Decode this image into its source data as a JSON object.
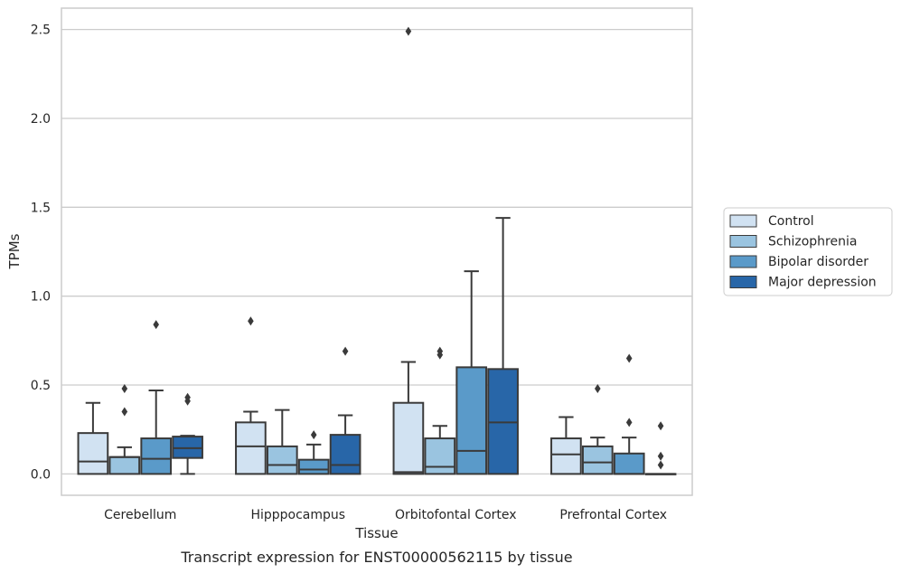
{
  "chart_data": {
    "type": "box",
    "title": "",
    "caption": "Transcript expression for ENST00000562115 by tissue",
    "xlabel": "Tissue",
    "ylabel": "TPMs",
    "ylim": [
      -0.12,
      2.62
    ],
    "yticks": [
      0.0,
      0.5,
      1.0,
      1.5,
      2.0,
      2.5
    ],
    "ytick_labels": [
      "0.0",
      "0.5",
      "1.0",
      "1.5",
      "2.0",
      "2.5"
    ],
    "grid": "horizontal",
    "legend_position": "right",
    "categories": [
      "Cerebellum",
      "Hipppocampus",
      "Orbitofontal Cortex",
      "Prefrontal Cortex"
    ],
    "series": [
      {
        "name": "Control",
        "color": "#d1e2f2",
        "boxes": [
          {
            "whisker_low": 0.0,
            "q1": 0.0,
            "median": 0.07,
            "q3": 0.23,
            "whisker_high": 0.4,
            "outliers": []
          },
          {
            "whisker_low": 0.0,
            "q1": 0.0,
            "median": 0.155,
            "q3": 0.29,
            "whisker_high": 0.35,
            "outliers": [
              0.86
            ]
          },
          {
            "whisker_low": 0.0,
            "q1": 0.0,
            "median": 0.01,
            "q3": 0.4,
            "whisker_high": 0.63,
            "outliers": [
              2.49
            ]
          },
          {
            "whisker_low": 0.0,
            "q1": 0.0,
            "median": 0.11,
            "q3": 0.2,
            "whisker_high": 0.32,
            "outliers": []
          }
        ]
      },
      {
        "name": "Schizophrenia",
        "color": "#9ac4e0",
        "boxes": [
          {
            "whisker_low": 0.0,
            "q1": 0.0,
            "median": 0.095,
            "q3": 0.095,
            "whisker_high": 0.15,
            "outliers": [
              0.35,
              0.48
            ]
          },
          {
            "whisker_low": 0.0,
            "q1": 0.0,
            "median": 0.05,
            "q3": 0.155,
            "whisker_high": 0.36,
            "outliers": []
          },
          {
            "whisker_low": 0.0,
            "q1": 0.0,
            "median": 0.04,
            "q3": 0.2,
            "whisker_high": 0.27,
            "outliers": [
              0.67,
              0.69
            ]
          },
          {
            "whisker_low": 0.0,
            "q1": 0.0,
            "median": 0.065,
            "q3": 0.155,
            "whisker_high": 0.205,
            "outliers": [
              0.48
            ]
          }
        ]
      },
      {
        "name": "Bipolar disorder",
        "color": "#5a9ac9",
        "boxes": [
          {
            "whisker_low": 0.0,
            "q1": 0.0,
            "median": 0.085,
            "q3": 0.2,
            "whisker_high": 0.47,
            "outliers": [
              0.84
            ]
          },
          {
            "whisker_low": 0.0,
            "q1": 0.0,
            "median": 0.025,
            "q3": 0.08,
            "whisker_high": 0.165,
            "outliers": [
              0.22
            ]
          },
          {
            "whisker_low": 0.0,
            "q1": 0.0,
            "median": 0.13,
            "q3": 0.6,
            "whisker_high": 1.14,
            "outliers": []
          },
          {
            "whisker_low": 0.0,
            "q1": 0.0,
            "median": 0.0,
            "q3": 0.115,
            "whisker_high": 0.205,
            "outliers": [
              0.29,
              0.65
            ]
          }
        ]
      },
      {
        "name": "Major depression",
        "color": "#2866a8",
        "boxes": [
          {
            "whisker_low": 0.0,
            "q1": 0.09,
            "median": 0.145,
            "q3": 0.21,
            "whisker_high": 0.215,
            "outliers": [
              0.41,
              0.43
            ]
          },
          {
            "whisker_low": 0.0,
            "q1": 0.0,
            "median": 0.05,
            "q3": 0.22,
            "whisker_high": 0.33,
            "outliers": [
              0.69
            ]
          },
          {
            "whisker_low": 0.0,
            "q1": 0.0,
            "median": 0.29,
            "q3": 0.59,
            "whisker_high": 1.44,
            "outliers": []
          },
          {
            "whisker_low": 0.0,
            "q1": 0.0,
            "median": 0.0,
            "q3": 0.0,
            "whisker_high": 0.0,
            "outliers": [
              0.05,
              0.1,
              0.27
            ]
          }
        ]
      }
    ]
  }
}
